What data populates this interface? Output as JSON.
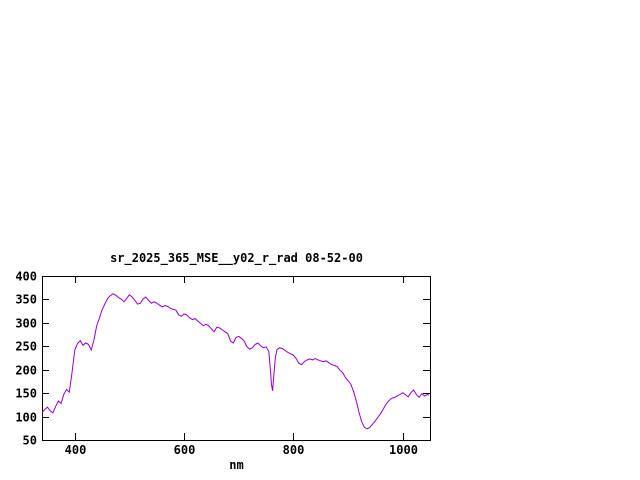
{
  "page": {
    "background": "#ffffff"
  },
  "chart_data": {
    "type": "line",
    "title": "sr_2025_365_MSE__y02_r_rad 08-52-00",
    "xlabel": "nm",
    "ylabel": "",
    "legend": "none",
    "grid": false,
    "line_color": "#9400d3",
    "axis_color": "#000000",
    "xlim": [
      340,
      1050
    ],
    "ylim": [
      50,
      400
    ],
    "xticks": [
      400,
      600,
      800,
      1000
    ],
    "yticks": [
      50,
      100,
      150,
      200,
      250,
      300,
      350,
      400
    ],
    "x": [
      340,
      345,
      350,
      355,
      360,
      365,
      370,
      375,
      380,
      385,
      390,
      395,
      400,
      405,
      410,
      415,
      420,
      425,
      430,
      435,
      440,
      445,
      450,
      455,
      460,
      465,
      470,
      475,
      480,
      485,
      490,
      495,
      500,
      505,
      510,
      515,
      520,
      525,
      530,
      535,
      540,
      545,
      550,
      555,
      560,
      565,
      570,
      575,
      580,
      585,
      590,
      595,
      600,
      605,
      610,
      615,
      620,
      625,
      630,
      635,
      640,
      645,
      650,
      655,
      660,
      665,
      670,
      675,
      680,
      685,
      690,
      695,
      700,
      705,
      710,
      715,
      720,
      725,
      730,
      735,
      740,
      745,
      750,
      755,
      758,
      760,
      762,
      764,
      767,
      770,
      775,
      780,
      785,
      790,
      795,
      800,
      805,
      810,
      815,
      820,
      825,
      830,
      835,
      840,
      845,
      850,
      855,
      860,
      865,
      870,
      875,
      880,
      885,
      890,
      895,
      900,
      905,
      910,
      915,
      920,
      925,
      930,
      935,
      940,
      945,
      950,
      955,
      960,
      965,
      970,
      975,
      980,
      985,
      990,
      995,
      1000,
      1005,
      1010,
      1015,
      1020,
      1025,
      1030,
      1035,
      1040,
      1045,
      1048
    ],
    "y": [
      108,
      115,
      120,
      112,
      108,
      122,
      133,
      128,
      148,
      158,
      152,
      195,
      242,
      256,
      262,
      252,
      257,
      254,
      242,
      263,
      293,
      310,
      328,
      340,
      352,
      358,
      362,
      359,
      354,
      351,
      345,
      352,
      360,
      355,
      348,
      340,
      342,
      351,
      355,
      348,
      342,
      345,
      342,
      338,
      334,
      337,
      335,
      331,
      329,
      327,
      317,
      314,
      319,
      317,
      311,
      307,
      309,
      304,
      299,
      294,
      297,
      294,
      287,
      281,
      291,
      289,
      285,
      281,
      277,
      261,
      257,
      269,
      271,
      267,
      261,
      249,
      244,
      247,
      254,
      257,
      251,
      247,
      249,
      239,
      200,
      168,
      155,
      185,
      225,
      243,
      247,
      245,
      241,
      237,
      234,
      231,
      224,
      214,
      211,
      217,
      221,
      223,
      221,
      224,
      221,
      219,
      217,
      219,
      215,
      211,
      209,
      207,
      199,
      194,
      184,
      177,
      169,
      154,
      134,
      109,
      89,
      77,
      74,
      77,
      84,
      91,
      99,
      107,
      117,
      127,
      134,
      139,
      141,
      144,
      147,
      151,
      147,
      142,
      151,
      157,
      147,
      141,
      149,
      144,
      147,
      146
    ]
  }
}
